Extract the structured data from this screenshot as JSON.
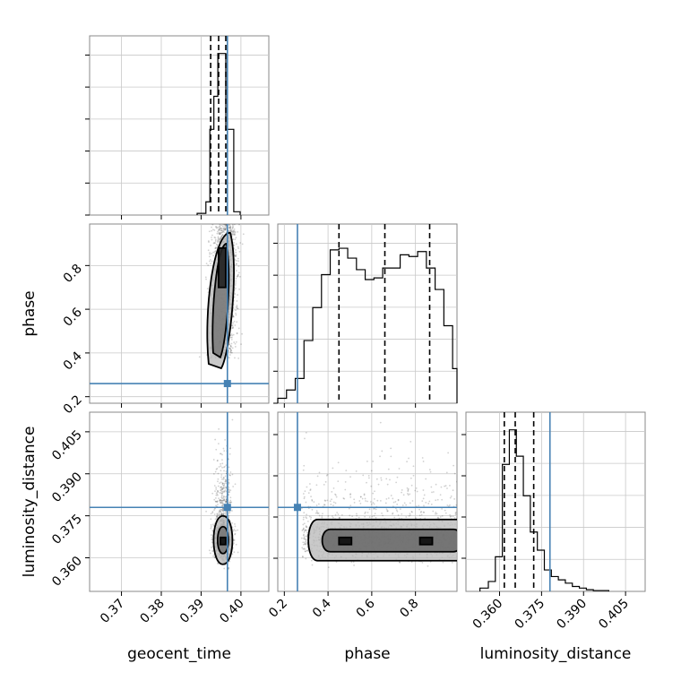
{
  "chart_data": {
    "type": "corner",
    "parameters": [
      "geocent_time",
      "phase",
      "luminosity_distance"
    ],
    "axis_labels": {
      "geocent_time": "geocent_time",
      "phase": "phase",
      "luminosity_distance": "luminosity_distance"
    },
    "ranges": {
      "geocent_time": [
        0.362,
        0.407
      ],
      "phase": [
        0.17,
        0.99
      ],
      "luminosity_distance": [
        0.348,
        0.412
      ]
    },
    "ticks": {
      "geocent_time": [
        "0.37",
        "0.38",
        "0.39",
        "0.40"
      ],
      "phase": [
        "0.2",
        "0.4",
        "0.6",
        "0.8"
      ],
      "luminosity_distance": [
        "0.360",
        "0.375",
        "0.390",
        "0.405"
      ]
    },
    "tick_values": {
      "geocent_time": [
        0.37,
        0.38,
        0.39,
        0.4
      ],
      "phase": [
        0.2,
        0.4,
        0.6,
        0.8
      ],
      "luminosity_distance": [
        0.36,
        0.375,
        0.39,
        0.405
      ]
    },
    "truths": {
      "geocent_time": 0.3966,
      "phase": 0.26,
      "luminosity_distance": 0.378
    },
    "quantiles": {
      "geocent_time": [
        0.3924,
        0.3944,
        0.3962
      ],
      "phase": [
        0.45,
        0.66,
        0.865
      ],
      "luminosity_distance": [
        0.3617,
        0.3656,
        0.3722
      ]
    },
    "histograms": {
      "geocent_time": {
        "edges": [
          0.389,
          0.3912,
          0.3922,
          0.3932,
          0.3942,
          0.3952,
          0.3962,
          0.3982,
          0.3998
        ],
        "counts": [
          0.01,
          0.08,
          0.52,
          0.72,
          0.98,
          0.98,
          0.52,
          0.02
        ]
      },
      "phase": {
        "edges": [
          0.17,
          0.21,
          0.25,
          0.29,
          0.33,
          0.37,
          0.41,
          0.45,
          0.49,
          0.53,
          0.57,
          0.61,
          0.65,
          0.69,
          0.73,
          0.77,
          0.81,
          0.85,
          0.89,
          0.93,
          0.97,
          0.99
        ],
        "counts": [
          0.03,
          0.08,
          0.15,
          0.38,
          0.58,
          0.78,
          0.93,
          0.94,
          0.88,
          0.81,
          0.75,
          0.76,
          0.82,
          0.82,
          0.9,
          0.89,
          0.92,
          0.82,
          0.69,
          0.47,
          0.21
        ]
      },
      "luminosity_distance": {
        "edges": [
          0.353,
          0.356,
          0.3585,
          0.361,
          0.3635,
          0.366,
          0.3685,
          0.371,
          0.3735,
          0.376,
          0.3785,
          0.381,
          0.3835,
          0.386,
          0.3885,
          0.391,
          0.3935,
          0.399
        ],
        "counts": [
          0.02,
          0.06,
          0.21,
          0.77,
          0.98,
          0.82,
          0.58,
          0.36,
          0.25,
          0.13,
          0.09,
          0.07,
          0.05,
          0.03,
          0.02,
          0.01,
          0.005
        ]
      }
    },
    "scatter_density": {
      "phase_vs_geocent_time": {
        "center_geocent_time": 0.3955,
        "spread": "narrow vertical band"
      },
      "luminosity_distance_vs_geocent_time": {
        "center_geocent_time": 0.3955,
        "center_luminosity_distance": 0.366
      },
      "luminosity_distance_vs_phase": {
        "center_luminosity_distance": 0.366,
        "spread": "horizontal band across phase"
      }
    },
    "truth_color": "#4682b4",
    "hist_color": "#000000",
    "grid": true
  }
}
